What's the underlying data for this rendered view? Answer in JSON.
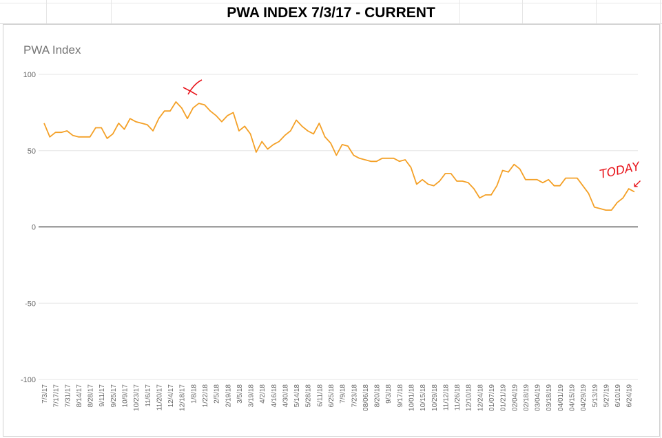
{
  "sheet": {
    "title": "PWA INDEX 7/3/17 - CURRENT"
  },
  "annotations": {
    "mark": "X",
    "today_label": "TODAY",
    "arrow": "↙"
  },
  "colors": {
    "line": "#f4a026",
    "grid": "#e6e6e6",
    "zero_line": "#333333",
    "axis_text": "#666666",
    "annotation": "#e8141b"
  },
  "chart_data": {
    "type": "line",
    "title": "PWA Index",
    "xlabel": "",
    "ylabel": "",
    "ylim": [
      -100,
      100
    ],
    "yticks": [
      100,
      50,
      0,
      -50,
      -100
    ],
    "grid": true,
    "legend": "none",
    "x_tick_labels": [
      "7/3/17",
      "7/17/17",
      "7/31/17",
      "8/14/17",
      "8/28/17",
      "9/11/17",
      "9/25/17",
      "10/9/17",
      "10/23/17",
      "11/6/17",
      "11/20/17",
      "12/4/17",
      "12/18/17",
      "1/8/18",
      "1/22/18",
      "2/5/18",
      "2/19/18",
      "3/5/18",
      "3/19/18",
      "4/2/18",
      "4/16/18",
      "4/30/18",
      "5/14/18",
      "5/28/18",
      "6/11/18",
      "6/25/18",
      "7/9/18",
      "7/23/18",
      "08/06/18",
      "8/20/18",
      "9/3/18",
      "9/17/18",
      "10/01/18",
      "10/15/18",
      "10/29/18",
      "11/12/18",
      "11/26/18",
      "12/10/18",
      "12/24/18",
      "01/07/19",
      "01/21/19",
      "02/04/19",
      "02/18/19",
      "03/04/19",
      "03/18/19",
      "04/01/19",
      "04/15/19",
      "04/29/19",
      "5/13/19",
      "5/27/19",
      "6/10/19",
      "6/24/19"
    ],
    "series": [
      {
        "values": [
          68,
          59,
          62,
          62,
          63,
          60,
          59,
          59,
          59,
          65,
          65,
          58,
          61,
          68,
          64,
          71,
          69,
          68,
          67,
          63,
          71,
          76,
          76,
          82,
          78,
          71,
          78,
          81,
          80,
          76,
          73,
          69,
          73,
          75,
          63,
          66,
          61,
          49,
          56,
          51,
          54,
          56,
          60,
          63,
          70,
          66,
          63,
          61,
          68,
          59,
          55,
          47,
          54,
          53,
          47,
          45,
          44,
          43,
          43,
          45,
          45,
          45,
          43,
          44,
          39,
          28,
          31,
          28,
          27,
          30,
          35,
          35,
          30,
          30,
          29,
          25,
          19,
          21,
          21,
          27,
          37,
          36,
          41,
          38,
          31,
          31,
          31,
          29,
          31,
          27,
          27,
          32,
          32,
          32,
          27,
          22,
          13,
          12,
          11,
          11,
          16,
          19,
          25,
          23
        ]
      }
    ]
  }
}
